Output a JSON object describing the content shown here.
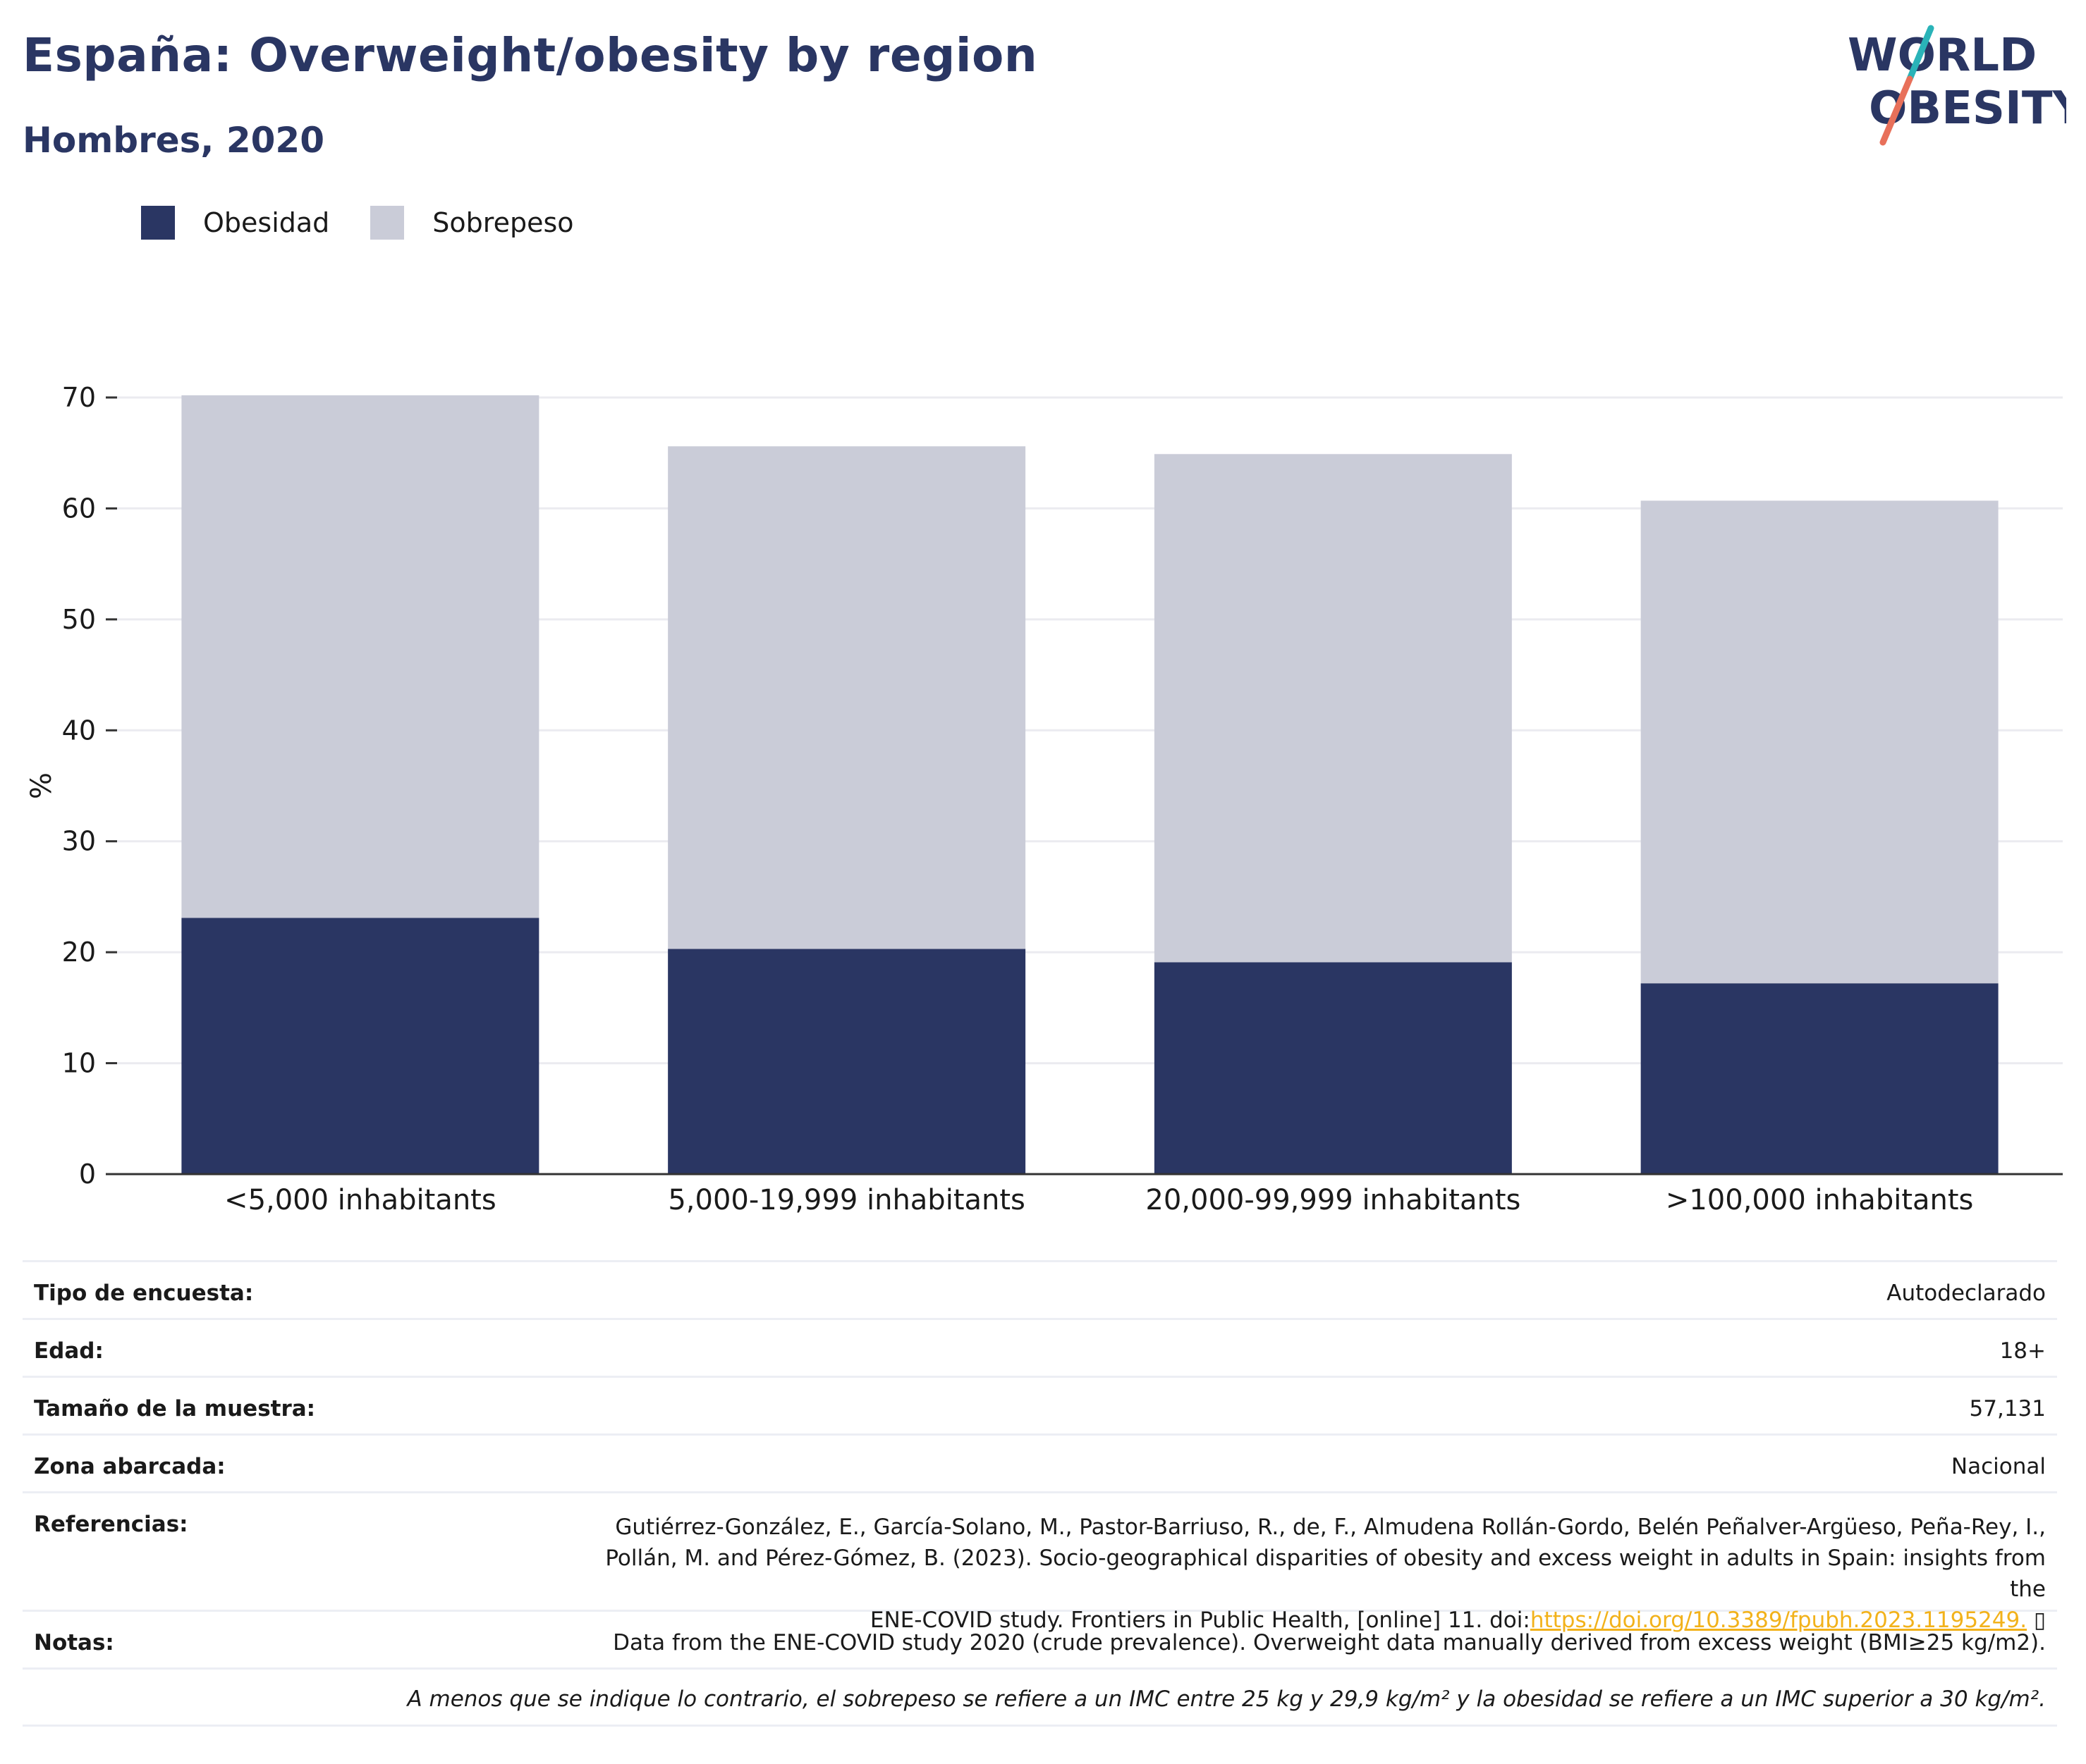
{
  "title": "España: Overweight/obesity by region",
  "subtitle": "Hombres, 2020",
  "logo": {
    "line1": "WORLD",
    "line2": "OBESITY",
    "colors": {
      "text": "#2a3663",
      "slash_top": "#2ab3b8",
      "slash_bottom": "#e8705a"
    }
  },
  "legend": [
    {
      "label": "Obesidad",
      "color": "#2a3663"
    },
    {
      "label": "Sobrepeso",
      "color": "#caccd8"
    }
  ],
  "chart_data": {
    "type": "bar",
    "stacked": true,
    "categories": [
      "<5,000 inhabitants",
      "5,000-19,999 inhabitants",
      "20,000-99,999 inhabitants",
      ">100,000 inhabitants"
    ],
    "series": [
      {
        "name": "Obesidad",
        "color": "#2a3663",
        "values": [
          23.1,
          20.3,
          19.1,
          17.2
        ]
      },
      {
        "name": "Sobrepeso",
        "color": "#caccd8",
        "values": [
          47.1,
          45.3,
          45.8,
          43.5
        ]
      }
    ],
    "ylabel": "%",
    "ylim": [
      0,
      70
    ],
    "yticks": [
      0,
      10,
      20,
      30,
      40,
      50,
      60,
      70
    ],
    "grid": true,
    "legend_position": "top-left"
  },
  "meta": {
    "survey_label": "Tipo de encuesta:",
    "survey_value": "Autodeclarado",
    "age_label": "Edad:",
    "age_value": "18+",
    "sample_label": "Tamaño de la muestra:",
    "sample_value": "57,131",
    "area_label": "Zona abarcada:",
    "area_value": "Nacional",
    "refs_label": "Referencias:",
    "refs_line1": "Gutiérrez-González, E., García-Solano, M., Pastor-Barriuso, R., de, F., Almudena Rollán-Gordo, Belén Peñalver-Argüeso, Peña-Rey, I.,",
    "refs_line2": "Pollán, M. and Pérez-Gómez, B. (2023). Socio-geographical disparities of obesity and excess weight in adults in Spain: insights from the",
    "refs_line3": "ENE-COVID study. Frontiers in Public Health, [online] 11. doi:",
    "refs_link": "https://doi.org/10.3389/fpubh.2023.1195249.",
    "refs_icon": "▯",
    "notes_label": "Notas:",
    "notes_value": "Data from the ENE-COVID study 2020 (crude prevalence). Overweight data manually derived from excess weight (BMI≥25 kg/m2).",
    "footnote": "A menos que se indique lo contrario, el sobrepeso se refiere a un IMC entre 25 kg y 29,9 kg/m² y la obesidad se refiere a un IMC superior a 30 kg/m²."
  }
}
